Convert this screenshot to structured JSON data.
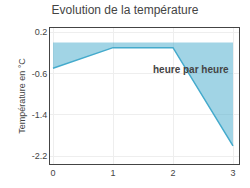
{
  "chart_data": {
    "type": "area",
    "title": "Evolution de la température",
    "y_label": "Température en °C",
    "x": [
      0,
      1,
      2,
      3
    ],
    "series": [
      {
        "name": "Température",
        "color": "#44aacc",
        "values": [
          -0.5,
          -0.1,
          -0.1,
          -2.0
        ]
      }
    ],
    "xlim": [
      -0.05,
      3.1
    ],
    "xticks": [
      0,
      1,
      2,
      3
    ],
    "ylim": [
      -2.35,
      0.28
    ],
    "yticks": [
      0.2,
      -0.6,
      -1.4,
      -2.2
    ],
    "grid": true,
    "annotations": [
      {
        "text": "heure par heure",
        "x": 2.3,
        "y": -0.38
      }
    ]
  }
}
